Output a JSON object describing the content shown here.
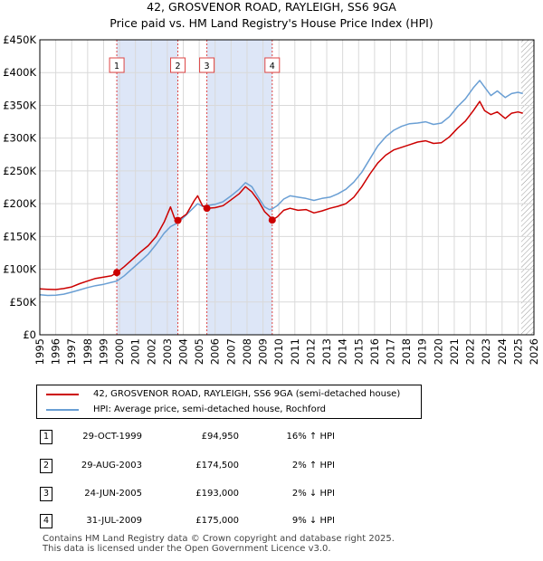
{
  "chart_data": {
    "type": "line",
    "title": "42, GROSVENOR ROAD, RAYLEIGH, SS6 9GA",
    "subtitle": "Price paid vs. HM Land Registry's House Price Index (HPI)",
    "xlim": [
      1995,
      2026
    ],
    "ylim": [
      0,
      450000
    ],
    "x_ticks": [
      "1995",
      "1996",
      "1997",
      "1998",
      "1999",
      "2000",
      "2001",
      "2002",
      "2003",
      "2004",
      "2005",
      "2006",
      "2007",
      "2008",
      "2009",
      "2010",
      "2011",
      "2012",
      "2013",
      "2014",
      "2015",
      "2016",
      "2017",
      "2018",
      "2019",
      "2020",
      "2021",
      "2022",
      "2023",
      "2024",
      "2025",
      "2026"
    ],
    "y_ticks": [
      {
        "value": 0,
        "label": "£0"
      },
      {
        "value": 50000,
        "label": "£50K"
      },
      {
        "value": 100000,
        "label": "£100K"
      },
      {
        "value": 150000,
        "label": "£150K"
      },
      {
        "value": 200000,
        "label": "£200K"
      },
      {
        "value": 250000,
        "label": "£250K"
      },
      {
        "value": 300000,
        "label": "£300K"
      },
      {
        "value": 350000,
        "label": "£350K"
      },
      {
        "value": 400000,
        "label": "£400K"
      },
      {
        "value": 450000,
        "label": "£450K"
      }
    ],
    "shaded_ranges": [
      [
        1999.83,
        2003.66
      ],
      [
        2005.48,
        2009.58
      ]
    ],
    "hatched_from": 2025.2,
    "series": [
      {
        "name": "42, GROSVENOR ROAD, RAYLEIGH, SS6 9GA (semi-detached house)",
        "color": "#cc0000",
        "points": [
          [
            1995.0,
            70000
          ],
          [
            1995.5,
            69500
          ],
          [
            1996.0,
            69000
          ],
          [
            1996.5,
            70500
          ],
          [
            1997.0,
            73000
          ],
          [
            1997.5,
            78000
          ],
          [
            1998.0,
            82000
          ],
          [
            1998.5,
            86000
          ],
          [
            1999.0,
            88000
          ],
          [
            1999.5,
            90000
          ],
          [
            1999.83,
            94950
          ],
          [
            2000.3,
            104000
          ],
          [
            2000.8,
            115000
          ],
          [
            2001.3,
            126000
          ],
          [
            2001.8,
            136000
          ],
          [
            2002.3,
            150000
          ],
          [
            2002.8,
            172000
          ],
          [
            2003.2,
            195000
          ],
          [
            2003.45,
            178000
          ],
          [
            2003.66,
            174500
          ],
          [
            2004.2,
            184000
          ],
          [
            2004.7,
            205000
          ],
          [
            2004.9,
            212000
          ],
          [
            2005.2,
            197000
          ],
          [
            2005.48,
            193000
          ],
          [
            2006.0,
            194000
          ],
          [
            2006.5,
            197000
          ],
          [
            2007.0,
            206000
          ],
          [
            2007.5,
            215000
          ],
          [
            2007.9,
            226000
          ],
          [
            2008.3,
            218000
          ],
          [
            2008.7,
            205000
          ],
          [
            2009.1,
            188000
          ],
          [
            2009.4,
            181000
          ],
          [
            2009.58,
            175000
          ],
          [
            2009.9,
            180000
          ],
          [
            2010.3,
            190000
          ],
          [
            2010.7,
            193000
          ],
          [
            2011.2,
            190000
          ],
          [
            2011.7,
            191000
          ],
          [
            2012.2,
            186000
          ],
          [
            2012.7,
            189000
          ],
          [
            2013.2,
            193000
          ],
          [
            2013.7,
            196000
          ],
          [
            2014.2,
            200000
          ],
          [
            2014.7,
            210000
          ],
          [
            2015.2,
            226000
          ],
          [
            2015.7,
            245000
          ],
          [
            2016.2,
            262000
          ],
          [
            2016.7,
            274000
          ],
          [
            2017.2,
            282000
          ],
          [
            2017.7,
            286000
          ],
          [
            2018.2,
            290000
          ],
          [
            2018.7,
            294000
          ],
          [
            2019.2,
            296000
          ],
          [
            2019.7,
            292000
          ],
          [
            2020.2,
            293000
          ],
          [
            2020.7,
            302000
          ],
          [
            2021.2,
            315000
          ],
          [
            2021.7,
            326000
          ],
          [
            2022.2,
            342000
          ],
          [
            2022.6,
            356000
          ],
          [
            2022.9,
            342000
          ],
          [
            2023.3,
            336000
          ],
          [
            2023.7,
            340000
          ],
          [
            2024.2,
            330000
          ],
          [
            2024.6,
            338000
          ],
          [
            2025.0,
            340000
          ],
          [
            2025.3,
            338000
          ]
        ]
      },
      {
        "name": "HPI: Average price, semi-detached house, Rochford",
        "color": "#6a9fd4",
        "points": [
          [
            1995.0,
            61000
          ],
          [
            1995.5,
            60000
          ],
          [
            1996.0,
            60500
          ],
          [
            1996.5,
            62000
          ],
          [
            1997.0,
            65000
          ],
          [
            1997.5,
            68500
          ],
          [
            1998.0,
            72000
          ],
          [
            1998.5,
            75000
          ],
          [
            1999.0,
            77000
          ],
          [
            1999.5,
            80000
          ],
          [
            1999.83,
            82000
          ],
          [
            2000.3,
            90000
          ],
          [
            2000.8,
            101000
          ],
          [
            2001.3,
            112000
          ],
          [
            2001.8,
            123000
          ],
          [
            2002.3,
            138000
          ],
          [
            2002.8,
            155000
          ],
          [
            2003.2,
            165000
          ],
          [
            2003.66,
            171000
          ],
          [
            2004.2,
            183000
          ],
          [
            2004.7,
            195000
          ],
          [
            2004.9,
            200000
          ],
          [
            2005.2,
            196000
          ],
          [
            2005.48,
            197000
          ],
          [
            2006.0,
            199000
          ],
          [
            2006.5,
            203000
          ],
          [
            2007.0,
            212000
          ],
          [
            2007.5,
            222000
          ],
          [
            2007.9,
            232000
          ],
          [
            2008.3,
            226000
          ],
          [
            2008.7,
            210000
          ],
          [
            2009.1,
            195000
          ],
          [
            2009.4,
            191000
          ],
          [
            2009.58,
            192000
          ],
          [
            2009.9,
            197000
          ],
          [
            2010.3,
            207000
          ],
          [
            2010.7,
            212000
          ],
          [
            2011.2,
            210000
          ],
          [
            2011.7,
            208000
          ],
          [
            2012.2,
            205000
          ],
          [
            2012.7,
            208000
          ],
          [
            2013.2,
            210000
          ],
          [
            2013.7,
            215000
          ],
          [
            2014.2,
            222000
          ],
          [
            2014.7,
            233000
          ],
          [
            2015.2,
            248000
          ],
          [
            2015.7,
            268000
          ],
          [
            2016.2,
            288000
          ],
          [
            2016.7,
            302000
          ],
          [
            2017.2,
            312000
          ],
          [
            2017.7,
            318000
          ],
          [
            2018.2,
            322000
          ],
          [
            2018.7,
            323000
          ],
          [
            2019.2,
            325000
          ],
          [
            2019.7,
            321000
          ],
          [
            2020.2,
            323000
          ],
          [
            2020.7,
            333000
          ],
          [
            2021.2,
            348000
          ],
          [
            2021.7,
            360000
          ],
          [
            2022.2,
            377000
          ],
          [
            2022.6,
            388000
          ],
          [
            2022.9,
            378000
          ],
          [
            2023.3,
            365000
          ],
          [
            2023.7,
            372000
          ],
          [
            2024.2,
            362000
          ],
          [
            2024.6,
            368000
          ],
          [
            2025.0,
            370000
          ],
          [
            2025.3,
            368000
          ]
        ]
      }
    ],
    "markers": [
      {
        "label": "1",
        "x": 1999.83,
        "price": 94950
      },
      {
        "label": "2",
        "x": 2003.66,
        "price": 174500
      },
      {
        "label": "3",
        "x": 2005.48,
        "price": 193000
      },
      {
        "label": "4",
        "x": 2009.58,
        "price": 175000
      }
    ]
  },
  "legend": {
    "property_label": "42, GROSVENOR ROAD, RAYLEIGH, SS6 9GA (semi-detached house)",
    "hpi_label": "HPI: Average price, semi-detached house, Rochford"
  },
  "sales": [
    {
      "num": "1",
      "date": "29-OCT-1999",
      "price": "£94,950",
      "hpi": "16% ↑ HPI"
    },
    {
      "num": "2",
      "date": "29-AUG-2003",
      "price": "£174,500",
      "hpi": "2% ↑ HPI"
    },
    {
      "num": "3",
      "date": "24-JUN-2005",
      "price": "£193,000",
      "hpi": "2% ↓ HPI"
    },
    {
      "num": "4",
      "date": "31-JUL-2009",
      "price": "£175,000",
      "hpi": "9% ↓ HPI"
    }
  ],
  "footer": {
    "line1": "Contains HM Land Registry data © Crown copyright and database right 2025.",
    "line2": "This data is licensed under the Open Government Licence v3.0."
  },
  "colors": {
    "property": "#cc0000",
    "hpi": "#6a9fd4",
    "shade": "#dde6f7",
    "grid": "#d9d9d9",
    "marker_line": "#dd4444"
  }
}
